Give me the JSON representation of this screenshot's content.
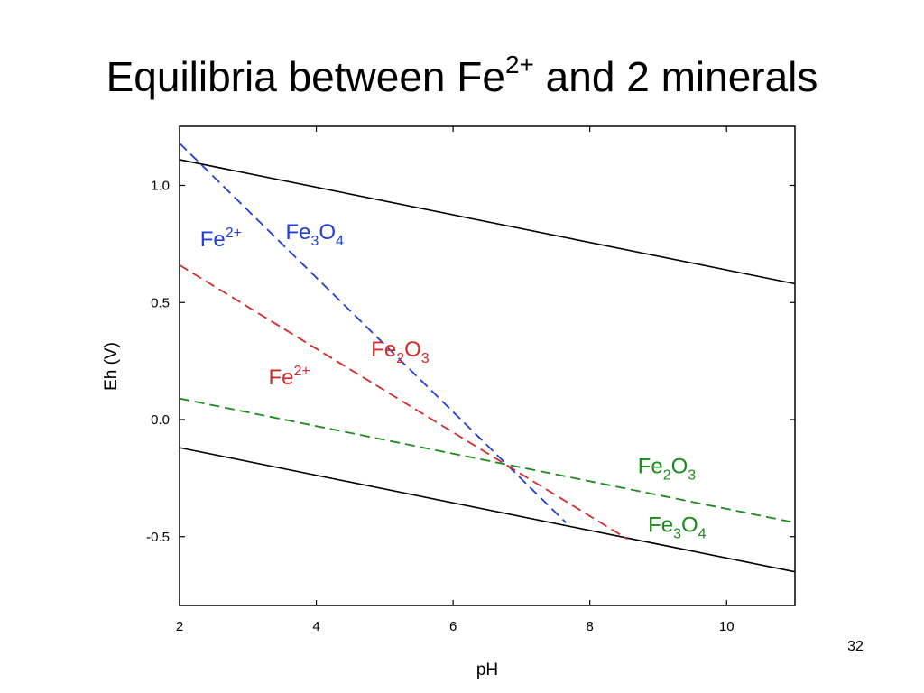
{
  "slide": {
    "title_main": "Equilibria between Fe",
    "title_sup": "2+",
    "title_end": " and 2 minerals",
    "page_number": "32"
  },
  "chart_data": {
    "type": "line",
    "title": "",
    "xlabel": "pH",
    "ylabel": "Eh (V)",
    "xlim": [
      2,
      11
    ],
    "ylim": [
      -0.8,
      1.25
    ],
    "xticks": [
      2,
      4,
      6,
      8,
      10
    ],
    "xtick_labels": [
      "2",
      "4",
      "6",
      "8",
      "10"
    ],
    "yticks": [
      -0.5,
      0.0,
      0.5,
      1.0
    ],
    "ytick_labels": [
      "-0.5",
      "0.0",
      "0.5",
      "1.0"
    ],
    "grid": false,
    "series": [
      {
        "color": "#000000",
        "dash": "solid",
        "x": [
          2,
          11
        ],
        "y": [
          1.11,
          0.58
        ]
      },
      {
        "color": "#000000",
        "dash": "solid",
        "x": [
          2,
          11
        ],
        "y": [
          -0.12,
          -0.65
        ]
      },
      {
        "color": "#1f3fd6",
        "dash": "dashed",
        "x": [
          2,
          7.65
        ],
        "y": [
          1.18,
          -0.44
        ]
      },
      {
        "color": "#d42a2a",
        "dash": "dashed",
        "x": [
          2,
          8.55
        ],
        "y": [
          0.66,
          -0.51
        ]
      },
      {
        "color": "#1a8a1a",
        "dash": "dashed",
        "x": [
          2,
          11
        ],
        "y": [
          0.09,
          -0.44
        ]
      }
    ],
    "annotations": [
      {
        "base": "Fe",
        "sup": "2+",
        "color": "#1f3fd6",
        "x": 2.3,
        "y": 0.74
      },
      {
        "parts": [
          [
            "Fe",
            ""
          ],
          [
            "3",
            "sub"
          ],
          [
            "O",
            ""
          ],
          [
            "4",
            "sub"
          ]
        ],
        "color": "#1f3fd6",
        "x": 3.55,
        "y": 0.77
      },
      {
        "parts": [
          [
            "Fe",
            ""
          ],
          [
            "2",
            "sub"
          ],
          [
            "O",
            ""
          ],
          [
            "3",
            "sub"
          ]
        ],
        "color": "#d42a2a",
        "x": 4.8,
        "y": 0.27
      },
      {
        "base": "Fe",
        "sup": "2+",
        "color": "#d42a2a",
        "x": 3.3,
        "y": 0.15
      },
      {
        "parts": [
          [
            "Fe",
            ""
          ],
          [
            "2",
            "sub"
          ],
          [
            "O",
            ""
          ],
          [
            "3",
            "sub"
          ]
        ],
        "color": "#1a8a1a",
        "x": 8.7,
        "y": -0.23
      },
      {
        "parts": [
          [
            "Fe",
            ""
          ],
          [
            "3",
            "sub"
          ],
          [
            "O",
            ""
          ],
          [
            "4",
            "sub"
          ]
        ],
        "color": "#1a8a1a",
        "x": 8.85,
        "y": -0.48
      }
    ]
  }
}
